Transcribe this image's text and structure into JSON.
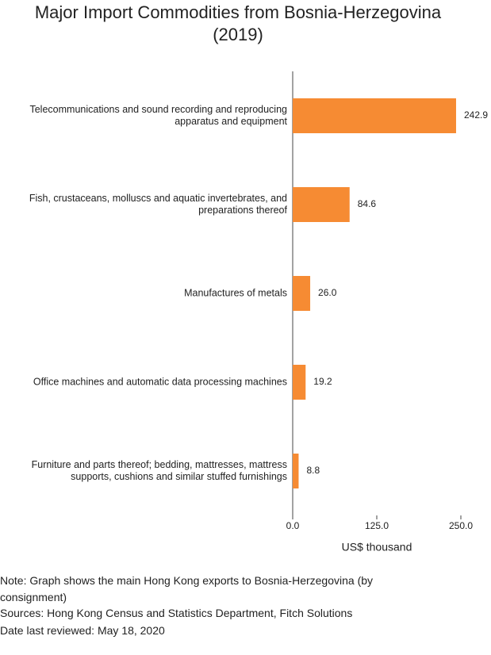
{
  "chart_data": {
    "type": "barh",
    "title": "Major Import Commodities from Bosnia-Herzegovina (2019)",
    "categories": [
      "Telecommunications and sound recording and reproducing apparatus and equipment",
      "Fish, crustaceans, molluscs and aquatic invertebrates, and preparations thereof",
      "Manufactures of metals",
      "Office machines and automatic data processing machines",
      "Furniture and parts thereof; bedding, mattresses, mattress supports, cushions and similar stuffed furnishings"
    ],
    "values": [
      242.9,
      84.6,
      26.0,
      19.2,
      8.8
    ],
    "value_labels": [
      "242.9",
      "84.6",
      "26.0",
      "19.2",
      "8.8"
    ],
    "color": "#f68b33",
    "xlim": [
      0,
      250
    ],
    "xticks": [
      {
        "value": 0,
        "label": "0.0"
      },
      {
        "value": 125,
        "label": "125.0"
      },
      {
        "value": 250,
        "label": "250.0"
      }
    ],
    "x_label": "US$ thousand",
    "grid": false,
    "notes": [
      "Note: Graph shows the main Hong Kong exports to Bosnia-Herzegovina (by consignment)",
      "Sources: Hong Kong Census and Statistics Department, Fitch Solutions",
      "Date last reviewed: May 18, 2020"
    ]
  }
}
